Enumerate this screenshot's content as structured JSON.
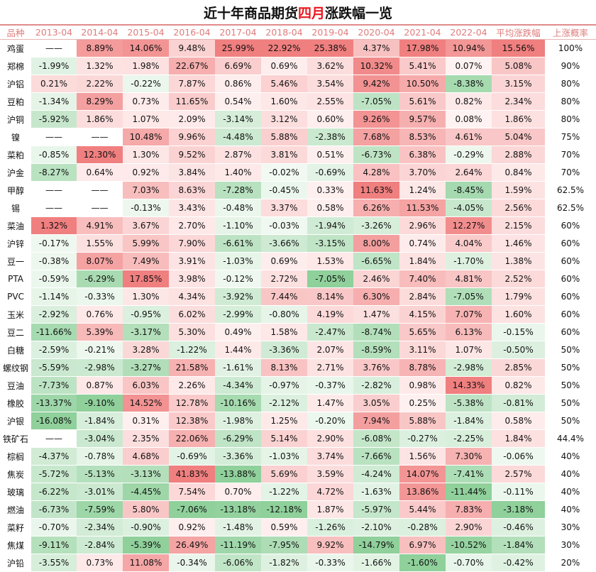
{
  "title": {
    "prefix": "近十年商品期货",
    "highlight": "四月",
    "suffix": "涨跌幅一览"
  },
  "colors": {
    "up_strong": "#f07f7f",
    "down_strong": "#8fd09b",
    "header_text": "#e07b7b",
    "title_highlight": "#e8181f"
  },
  "chart_data": {
    "type": "table",
    "columns": [
      "品种",
      "2013-04",
      "2014-04",
      "2015-04",
      "2016-04",
      "2017-04",
      "2018-04",
      "2019-04",
      "2020-04",
      "2021-04",
      "2022-04",
      "平均涨跌幅",
      "上涨概率"
    ],
    "rows": [
      {
        "name": "鸡蛋",
        "values": [
          "——",
          "8.89%",
          "14.06%",
          "9.48%",
          "25.99%",
          "22.92%",
          "25.38%",
          "4.37%",
          "17.98%",
          "10.94%"
        ],
        "avg": "15.56%",
        "prob": "100%"
      },
      {
        "name": "郑棉",
        "values": [
          "-1.99%",
          "1.32%",
          "1.98%",
          "22.67%",
          "6.69%",
          "0.69%",
          "3.62%",
          "10.32%",
          "5.41%",
          "0.07%"
        ],
        "avg": "5.08%",
        "prob": "90%"
      },
      {
        "name": "沪铝",
        "values": [
          "0.21%",
          "2.22%",
          "-0.22%",
          "7.87%",
          "0.86%",
          "5.46%",
          "3.54%",
          "9.42%",
          "10.50%",
          "-8.38%"
        ],
        "avg": "3.15%",
        "prob": "80%"
      },
      {
        "name": "豆粕",
        "values": [
          "-1.34%",
          "8.29%",
          "0.73%",
          "11.65%",
          "0.54%",
          "1.60%",
          "2.55%",
          "-7.05%",
          "5.61%",
          "0.82%"
        ],
        "avg": "2.34%",
        "prob": "80%"
      },
      {
        "name": "沪铜",
        "values": [
          "-5.92%",
          "1.86%",
          "1.07%",
          "2.09%",
          "-3.14%",
          "3.12%",
          "0.60%",
          "9.26%",
          "9.57%",
          "0.08%"
        ],
        "avg": "1.86%",
        "prob": "80%"
      },
      {
        "name": "镍",
        "values": [
          "——",
          "——",
          "10.48%",
          "9.96%",
          "-4.48%",
          "5.88%",
          "-2.38%",
          "7.68%",
          "8.53%",
          "4.61%"
        ],
        "avg": "5.04%",
        "prob": "75%"
      },
      {
        "name": "菜粕",
        "values": [
          "-0.85%",
          "12.30%",
          "1.30%",
          "9.52%",
          "2.87%",
          "3.81%",
          "0.51%",
          "-6.73%",
          "6.38%",
          "-0.29%"
        ],
        "avg": "2.88%",
        "prob": "70%"
      },
      {
        "name": "沪金",
        "values": [
          "-8.27%",
          "0.64%",
          "0.92%",
          "3.84%",
          "1.40%",
          "-0.02%",
          "-0.69%",
          "4.28%",
          "3.70%",
          "2.64%"
        ],
        "avg": "0.84%",
        "prob": "70%"
      },
      {
        "name": "甲醇",
        "values": [
          "——",
          "——",
          "7.03%",
          "8.63%",
          "-7.28%",
          "-0.45%",
          "0.33%",
          "11.63%",
          "1.24%",
          "-8.45%"
        ],
        "avg": "1.59%",
        "prob": "62.5%"
      },
      {
        "name": "锡",
        "values": [
          "——",
          "——",
          "-0.13%",
          "3.43%",
          "-0.48%",
          "3.37%",
          "0.58%",
          "6.26%",
          "11.53%",
          "-4.05%"
        ],
        "avg": "2.56%",
        "prob": "62.5%"
      },
      {
        "name": "菜油",
        "values": [
          "1.32%",
          "4.91%",
          "3.67%",
          "2.70%",
          "-1.10%",
          "-0.03%",
          "-1.94%",
          "-3.26%",
          "2.96%",
          "12.27%"
        ],
        "avg": "2.15%",
        "prob": "60%"
      },
      {
        "name": "沪锌",
        "values": [
          "-0.17%",
          "1.55%",
          "5.99%",
          "7.90%",
          "-6.61%",
          "-3.66%",
          "-3.15%",
          "8.00%",
          "0.74%",
          "4.04%"
        ],
        "avg": "1.46%",
        "prob": "60%"
      },
      {
        "name": "豆一",
        "values": [
          "-0.38%",
          "8.07%",
          "7.49%",
          "3.91%",
          "-1.03%",
          "0.69%",
          "1.53%",
          "-6.65%",
          "1.84%",
          "-1.70%"
        ],
        "avg": "1.38%",
        "prob": "60%"
      },
      {
        "name": "PTA",
        "values": [
          "-0.59%",
          "-6.29%",
          "17.85%",
          "3.98%",
          "-0.12%",
          "2.72%",
          "-7.05%",
          "2.46%",
          "7.40%",
          "4.81%"
        ],
        "avg": "2.52%",
        "prob": "60%"
      },
      {
        "name": "PVC",
        "values": [
          "-1.14%",
          "-0.33%",
          "1.30%",
          "4.34%",
          "-3.92%",
          "7.44%",
          "8.14%",
          "6.30%",
          "2.84%",
          "-7.05%"
        ],
        "avg": "1.79%",
        "prob": "60%"
      },
      {
        "name": "玉米",
        "values": [
          "-2.92%",
          "0.76%",
          "-0.95%",
          "6.02%",
          "-2.99%",
          "-0.80%",
          "4.19%",
          "1.47%",
          "4.15%",
          "7.07%"
        ],
        "avg": "1.60%",
        "prob": "60%"
      },
      {
        "name": "豆二",
        "values": [
          "-11.66%",
          "5.39%",
          "-3.17%",
          "5.30%",
          "0.49%",
          "1.58%",
          "-2.47%",
          "-8.74%",
          "5.65%",
          "6.13%"
        ],
        "avg": "-0.15%",
        "prob": "60%"
      },
      {
        "name": "白糖",
        "values": [
          "-2.59%",
          "-0.21%",
          "3.28%",
          "-1.22%",
          "1.44%",
          "-3.36%",
          "2.07%",
          "-8.59%",
          "3.11%",
          "1.07%"
        ],
        "avg": "-0.50%",
        "prob": "50%"
      },
      {
        "name": "螺纹钢",
        "values": [
          "-5.59%",
          "-2.98%",
          "-3.27%",
          "21.58%",
          "-1.61%",
          "8.13%",
          "2.71%",
          "3.76%",
          "8.78%",
          "-2.98%"
        ],
        "avg": "2.85%",
        "prob": "50%"
      },
      {
        "name": "豆油",
        "values": [
          "-7.73%",
          "0.87%",
          "6.03%",
          "2.26%",
          "-4.34%",
          "-0.97%",
          "-0.37%",
          "-2.82%",
          "0.98%",
          "14.33%"
        ],
        "avg": "0.82%",
        "prob": "50%"
      },
      {
        "name": "橡胶",
        "values": [
          "-13.37%",
          "-9.10%",
          "14.52%",
          "12.78%",
          "-10.16%",
          "-2.12%",
          "1.47%",
          "3.05%",
          "0.25%",
          "-5.38%"
        ],
        "avg": "-0.81%",
        "prob": "50%"
      },
      {
        "name": "沪银",
        "values": [
          "-16.08%",
          "-1.84%",
          "0.31%",
          "12.38%",
          "-1.98%",
          "1.25%",
          "-0.20%",
          "7.94%",
          "5.88%",
          "-1.84%"
        ],
        "avg": "0.58%",
        "prob": "50%"
      },
      {
        "name": "铁矿石",
        "values": [
          "——",
          "-3.04%",
          "2.35%",
          "22.06%",
          "-6.29%",
          "5.14%",
          "2.90%",
          "-6.08%",
          "-0.27%",
          "-2.25%"
        ],
        "avg": "1.84%",
        "prob": "44.4%"
      },
      {
        "name": "棕榈",
        "values": [
          "-4.37%",
          "-0.78%",
          "4.68%",
          "-0.69%",
          "-3.36%",
          "-1.03%",
          "3.74%",
          "-7.66%",
          "1.56%",
          "7.30%"
        ],
        "avg": "-0.06%",
        "prob": "40%"
      },
      {
        "name": "焦炭",
        "values": [
          "-5.72%",
          "-5.13%",
          "-3.13%",
          "41.83%",
          "-13.88%",
          "5.69%",
          "3.59%",
          "-4.24%",
          "14.07%",
          "-7.41%"
        ],
        "avg": "2.57%",
        "prob": "40%"
      },
      {
        "name": "玻璃",
        "values": [
          "-6.22%",
          "-3.01%",
          "-4.45%",
          "7.54%",
          "0.70%",
          "-1.22%",
          "4.72%",
          "-1.63%",
          "13.86%",
          "-11.44%"
        ],
        "avg": "-0.11%",
        "prob": "40%"
      },
      {
        "name": "燃油",
        "values": [
          "-6.73%",
          "-7.59%",
          "5.80%",
          "-7.06%",
          "-13.18%",
          "-12.18%",
          "1.87%",
          "-5.97%",
          "5.44%",
          "7.83%"
        ],
        "avg": "-3.18%",
        "prob": "40%"
      },
      {
        "name": "菜籽",
        "values": [
          "-0.70%",
          "-2.34%",
          "-0.90%",
          "0.92%",
          "-1.48%",
          "0.59%",
          "-1.26%",
          "-2.10%",
          "-0.28%",
          "2.90%"
        ],
        "avg": "-0.46%",
        "prob": "30%"
      },
      {
        "name": "焦煤",
        "values": [
          "-9.11%",
          "-2.84%",
          "-5.39%",
          "26.49%",
          "-11.19%",
          "-7.95%",
          "9.92%",
          "-14.79%",
          "6.97%",
          "-10.52%"
        ],
        "avg": "-1.84%",
        "prob": "30%"
      },
      {
        "name": "沪铅",
        "values": [
          "-3.55%",
          "0.73%",
          "11.08%",
          "-0.34%",
          "-6.06%",
          "-1.82%",
          "-0.33%",
          "-1.66%",
          "-1.60%",
          "-0.70%"
        ],
        "avg": "-0.42%",
        "prob": "20%"
      }
    ]
  }
}
